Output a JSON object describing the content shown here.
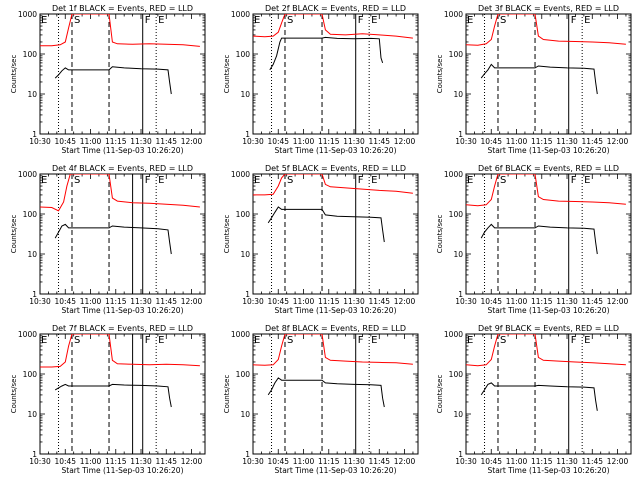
{
  "chart_data": {
    "type": "line",
    "layout": "3x3 grid",
    "ylabel": "Counts/sec",
    "xlabel": "Start Time (11-Sep-03 10:26:20)",
    "y_scale": "log",
    "ylim": [
      1,
      1000
    ],
    "y_tick_labels": [
      "1",
      "10",
      "100",
      "1000"
    ],
    "x_range": [
      "10:30",
      "12:08"
    ],
    "x_tick_labels": [
      "10:30",
      "10:45",
      "11:00",
      "11:15",
      "11:30",
      "11:45",
      "12:00"
    ],
    "series_colors": {
      "events": "#000000",
      "lld": "#ff0000"
    },
    "markers": [
      {
        "time": "10:41",
        "style": "dotted"
      },
      {
        "time": "10:49",
        "style": "dashed"
      },
      {
        "time": "11:11",
        "style": "dashed"
      },
      {
        "time": "11:39",
        "style": "dotted"
      }
    ],
    "panels": [
      {
        "title": "Det 1f BLACK = Events, RED = LLD",
        "letters": [
          "E",
          "S",
          "F",
          "E"
        ],
        "f_lines": [
          "11:31"
        ],
        "red": [
          [
            "10:30",
            160
          ],
          [
            "10:37",
            160
          ],
          [
            "10:42",
            170
          ],
          [
            "10:45",
            200
          ],
          [
            "10:47",
            450
          ],
          [
            "10:49",
            1000
          ],
          [
            "11:11",
            1000
          ],
          [
            "11:13",
            200
          ],
          [
            "11:16",
            180
          ],
          [
            "11:25",
            175
          ],
          [
            "11:35",
            180
          ],
          [
            "11:45",
            175
          ],
          [
            "11:55",
            170
          ],
          [
            "12:05",
            155
          ]
        ],
        "black": [
          [
            "10:39",
            25
          ],
          [
            "10:41",
            30
          ],
          [
            "10:43",
            38
          ],
          [
            "10:45",
            45
          ],
          [
            "10:47",
            40
          ],
          [
            "11:11",
            40
          ],
          [
            "11:13",
            48
          ],
          [
            "11:20",
            45
          ],
          [
            "11:30",
            43
          ],
          [
            "11:40",
            42
          ],
          [
            "11:46",
            40
          ],
          [
            "11:47",
            20
          ],
          [
            "11:48",
            10
          ]
        ]
      },
      {
        "title": "Det 2f BLACK = Events, RED = LLD",
        "letters": [
          "E",
          "S",
          "F",
          "E"
        ],
        "f_lines": [
          "11:31"
        ],
        "red": [
          [
            "10:30",
            280
          ],
          [
            "10:37",
            270
          ],
          [
            "10:42",
            280
          ],
          [
            "10:45",
            350
          ],
          [
            "10:47",
            600
          ],
          [
            "10:49",
            1000
          ],
          [
            "11:11",
            1000
          ],
          [
            "11:13",
            400
          ],
          [
            "11:16",
            310
          ],
          [
            "11:25",
            300
          ],
          [
            "11:35",
            320
          ],
          [
            "11:45",
            300
          ],
          [
            "11:55",
            280
          ],
          [
            "12:05",
            250
          ]
        ],
        "black": [
          [
            "10:40",
            40
          ],
          [
            "10:42",
            55
          ],
          [
            "10:44",
            90
          ],
          [
            "10:46",
            200
          ],
          [
            "10:47",
            250
          ],
          [
            "11:11",
            250
          ],
          [
            "11:13",
            260
          ],
          [
            "11:20",
            245
          ],
          [
            "11:30",
            240
          ],
          [
            "11:40",
            245
          ],
          [
            "11:45",
            240
          ],
          [
            "11:46",
            80
          ],
          [
            "11:47",
            60
          ]
        ]
      },
      {
        "title": "Det 3f BLACK = Events, RED = LLD",
        "letters": [
          "E",
          "S",
          "F",
          "E"
        ],
        "f_lines": [
          "11:31"
        ],
        "red": [
          [
            "10:30",
            170
          ],
          [
            "10:37",
            165
          ],
          [
            "10:42",
            180
          ],
          [
            "10:45",
            230
          ],
          [
            "10:47",
            500
          ],
          [
            "10:49",
            1000
          ],
          [
            "11:11",
            1000
          ],
          [
            "11:13",
            280
          ],
          [
            "11:16",
            230
          ],
          [
            "11:25",
            210
          ],
          [
            "11:35",
            205
          ],
          [
            "11:45",
            200
          ],
          [
            "11:55",
            190
          ],
          [
            "12:05",
            175
          ]
        ],
        "black": [
          [
            "10:39",
            25
          ],
          [
            "10:41",
            32
          ],
          [
            "10:43",
            40
          ],
          [
            "10:45",
            55
          ],
          [
            "10:47",
            45
          ],
          [
            "11:11",
            45
          ],
          [
            "11:13",
            50
          ],
          [
            "11:20",
            47
          ],
          [
            "11:30",
            45
          ],
          [
            "11:40",
            44
          ],
          [
            "11:46",
            42
          ],
          [
            "11:47",
            20
          ],
          [
            "11:48",
            10
          ]
        ]
      },
      {
        "title": "Det 4f BLACK = Events, RED = LLD",
        "letters": [
          "E",
          "S",
          "F",
          "E"
        ],
        "f_lines": [
          "11:25",
          "11:31"
        ],
        "red": [
          [
            "10:30",
            150
          ],
          [
            "10:37",
            145
          ],
          [
            "10:41",
            120
          ],
          [
            "10:44",
            200
          ],
          [
            "10:46",
            500
          ],
          [
            "10:48",
            1000
          ],
          [
            "11:11",
            1000
          ],
          [
            "11:13",
            250
          ],
          [
            "11:16",
            210
          ],
          [
            "11:25",
            190
          ],
          [
            "11:35",
            185
          ],
          [
            "11:45",
            175
          ],
          [
            "11:55",
            165
          ],
          [
            "12:05",
            150
          ]
        ],
        "black": [
          [
            "10:39",
            25
          ],
          [
            "10:41",
            35
          ],
          [
            "10:43",
            50
          ],
          [
            "10:45",
            55
          ],
          [
            "10:47",
            45
          ],
          [
            "11:11",
            45
          ],
          [
            "11:13",
            50
          ],
          [
            "11:20",
            47
          ],
          [
            "11:30",
            45
          ],
          [
            "11:40",
            43
          ],
          [
            "11:46",
            40
          ],
          [
            "11:47",
            20
          ],
          [
            "11:48",
            10
          ]
        ]
      },
      {
        "title": "Det 5f BLACK = Events, RED = LLD",
        "letters": [
          "E",
          "S",
          "F",
          "E"
        ],
        "f_lines": [
          "11:31"
        ],
        "red": [
          [
            "10:30",
            300
          ],
          [
            "10:37",
            300
          ],
          [
            "10:42",
            310
          ],
          [
            "10:45",
            500
          ],
          [
            "10:47",
            800
          ],
          [
            "10:49",
            1000
          ],
          [
            "11:11",
            1000
          ],
          [
            "11:13",
            550
          ],
          [
            "11:16",
            480
          ],
          [
            "11:25",
            450
          ],
          [
            "11:35",
            420
          ],
          [
            "11:45",
            390
          ],
          [
            "11:55",
            370
          ],
          [
            "12:05",
            330
          ]
        ],
        "black": [
          [
            "10:39",
            60
          ],
          [
            "10:41",
            80
          ],
          [
            "10:43",
            110
          ],
          [
            "10:45",
            150
          ],
          [
            "10:47",
            130
          ],
          [
            "11:11",
            130
          ],
          [
            "11:13",
            95
          ],
          [
            "11:20",
            88
          ],
          [
            "11:30",
            85
          ],
          [
            "11:40",
            83
          ],
          [
            "11:46",
            80
          ],
          [
            "11:47",
            40
          ],
          [
            "11:48",
            20
          ]
        ]
      },
      {
        "title": "Det 6f BLACK = Events, RED = LLD",
        "letters": [
          "E",
          "S",
          "F",
          "E"
        ],
        "f_lines": [
          "11:31"
        ],
        "red": [
          [
            "10:30",
            170
          ],
          [
            "10:37",
            160
          ],
          [
            "10:42",
            170
          ],
          [
            "10:45",
            230
          ],
          [
            "10:47",
            500
          ],
          [
            "10:49",
            1000
          ],
          [
            "11:11",
            1000
          ],
          [
            "11:13",
            270
          ],
          [
            "11:16",
            230
          ],
          [
            "11:25",
            210
          ],
          [
            "11:35",
            205
          ],
          [
            "11:45",
            200
          ],
          [
            "11:55",
            190
          ],
          [
            "12:05",
            175
          ]
        ],
        "black": [
          [
            "10:39",
            25
          ],
          [
            "10:41",
            35
          ],
          [
            "10:43",
            45
          ],
          [
            "10:45",
            55
          ],
          [
            "10:47",
            45
          ],
          [
            "11:11",
            45
          ],
          [
            "11:13",
            50
          ],
          [
            "11:20",
            47
          ],
          [
            "11:30",
            45
          ],
          [
            "11:40",
            44
          ],
          [
            "11:46",
            42
          ],
          [
            "11:47",
            20
          ],
          [
            "11:48",
            10
          ]
        ]
      },
      {
        "title": "Det 7f BLACK = Events, RED = LLD",
        "letters": [
          "E",
          "S",
          "F",
          "E"
        ],
        "f_lines": [
          "11:25",
          "11:31"
        ],
        "red": [
          [
            "10:30",
            150
          ],
          [
            "10:37",
            150
          ],
          [
            "10:42",
            155
          ],
          [
            "10:45",
            200
          ],
          [
            "10:47",
            500
          ],
          [
            "10:49",
            1000
          ],
          [
            "11:11",
            1000
          ],
          [
            "11:13",
            220
          ],
          [
            "11:16",
            180
          ],
          [
            "11:25",
            175
          ],
          [
            "11:35",
            170
          ],
          [
            "11:45",
            175
          ],
          [
            "11:55",
            170
          ],
          [
            "12:05",
            160
          ]
        ],
        "black": [
          [
            "10:39",
            40
          ],
          [
            "10:41",
            45
          ],
          [
            "10:43",
            50
          ],
          [
            "10:45",
            55
          ],
          [
            "10:47",
            50
          ],
          [
            "11:11",
            50
          ],
          [
            "11:13",
            55
          ],
          [
            "11:20",
            53
          ],
          [
            "11:30",
            52
          ],
          [
            "11:40",
            50
          ],
          [
            "11:46",
            48
          ],
          [
            "11:47",
            25
          ],
          [
            "11:48",
            15
          ]
        ]
      },
      {
        "title": "Det 8f BLACK = Events, RED = LLD",
        "letters": [
          "E",
          "S",
          "F",
          "E"
        ],
        "f_lines": [
          "11:31"
        ],
        "red": [
          [
            "10:30",
            170
          ],
          [
            "10:37",
            165
          ],
          [
            "10:42",
            170
          ],
          [
            "10:45",
            230
          ],
          [
            "10:47",
            500
          ],
          [
            "10:49",
            1000
          ],
          [
            "11:11",
            1000
          ],
          [
            "11:13",
            260
          ],
          [
            "11:16",
            220
          ],
          [
            "11:25",
            210
          ],
          [
            "11:35",
            200
          ],
          [
            "11:45",
            195
          ],
          [
            "11:55",
            190
          ],
          [
            "12:05",
            175
          ]
        ],
        "black": [
          [
            "10:39",
            30
          ],
          [
            "10:41",
            40
          ],
          [
            "10:43",
            60
          ],
          [
            "10:45",
            80
          ],
          [
            "10:47",
            70
          ],
          [
            "11:11",
            70
          ],
          [
            "11:13",
            60
          ],
          [
            "11:20",
            57
          ],
          [
            "11:30",
            55
          ],
          [
            "11:40",
            54
          ],
          [
            "11:46",
            52
          ],
          [
            "11:47",
            25
          ],
          [
            "11:48",
            15
          ]
        ]
      },
      {
        "title": "Det 9f BLACK = Events, RED = LLD",
        "letters": [
          "E",
          "S",
          "F",
          "E"
        ],
        "f_lines": [
          "11:31"
        ],
        "red": [
          [
            "10:30",
            170
          ],
          [
            "10:37",
            160
          ],
          [
            "10:42",
            170
          ],
          [
            "10:45",
            230
          ],
          [
            "10:47",
            500
          ],
          [
            "10:49",
            1000
          ],
          [
            "11:11",
            1000
          ],
          [
            "11:13",
            260
          ],
          [
            "11:16",
            220
          ],
          [
            "11:25",
            210
          ],
          [
            "11:35",
            200
          ],
          [
            "11:45",
            190
          ],
          [
            "11:55",
            180
          ],
          [
            "12:05",
            170
          ]
        ],
        "black": [
          [
            "10:39",
            30
          ],
          [
            "10:41",
            40
          ],
          [
            "10:43",
            55
          ],
          [
            "10:45",
            60
          ],
          [
            "10:47",
            50
          ],
          [
            "11:11",
            50
          ],
          [
            "11:13",
            52
          ],
          [
            "11:20",
            50
          ],
          [
            "11:30",
            48
          ],
          [
            "11:40",
            47
          ],
          [
            "11:46",
            45
          ],
          [
            "11:47",
            22
          ],
          [
            "11:48",
            12
          ]
        ]
      }
    ]
  }
}
